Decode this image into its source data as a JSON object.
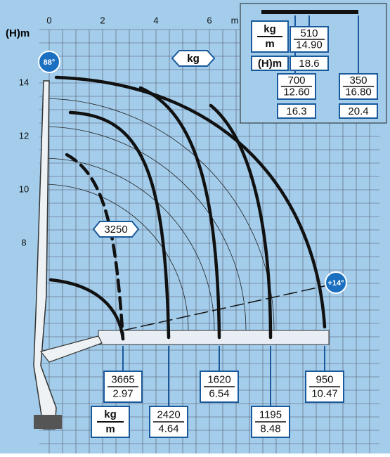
{
  "axis": {
    "y_label": "(H)m",
    "x_unit": "m",
    "x_ticks": [
      "0",
      "2",
      "4",
      "6"
    ],
    "y_ticks": [
      "14",
      "12",
      "10",
      "8"
    ]
  },
  "badges": {
    "max_angle": "88°",
    "min_angle": "+14°",
    "load_unit": "kg"
  },
  "legend": {
    "unit_kg": "kg",
    "unit_m": "m",
    "unit_height": "(H)m",
    "entries": [
      {
        "kg": "510",
        "m": "14.90",
        "h": "18.6"
      },
      {
        "kg": "700",
        "m": "12.60",
        "h": "16.3"
      },
      {
        "kg": "350",
        "m": "16.80",
        "h": "20.4"
      }
    ]
  },
  "dashed_load": "3250",
  "loads": [
    {
      "kg": "3665",
      "m": "2.97"
    },
    {
      "kg": "2420",
      "m": "4.64"
    },
    {
      "kg": "1620",
      "m": "6.54"
    },
    {
      "kg": "1195",
      "m": "8.48"
    },
    {
      "kg": "950",
      "m": "10.47"
    }
  ],
  "bottom_legend": {
    "kg": "kg",
    "m": "m"
  }
}
